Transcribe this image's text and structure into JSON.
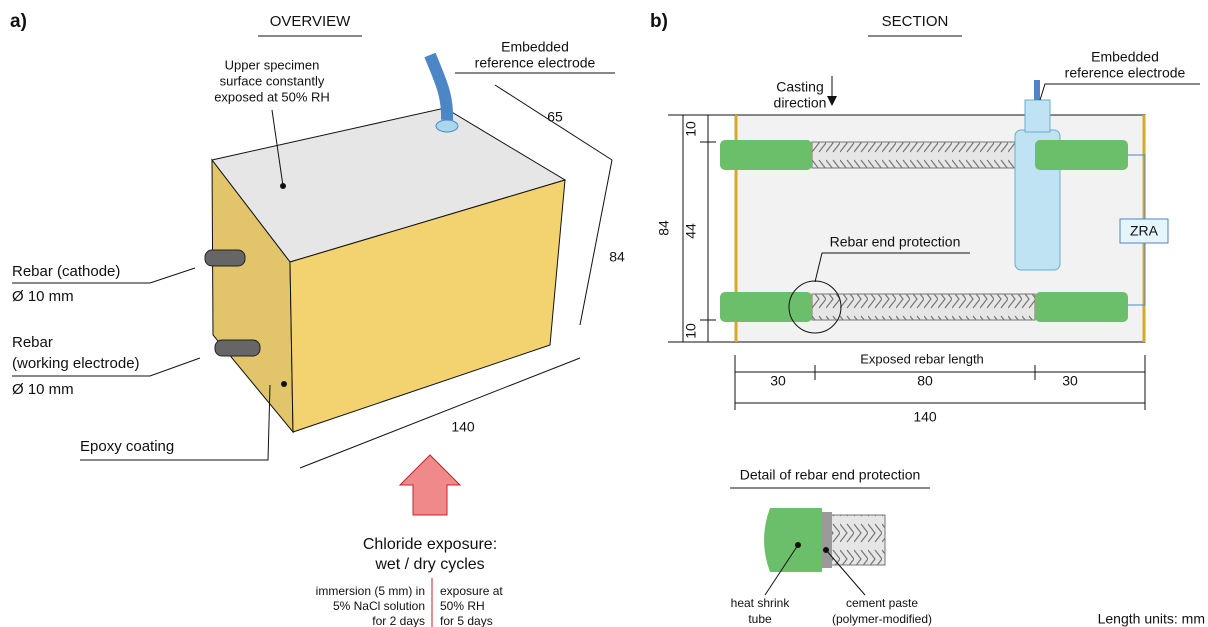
{
  "panel_a": {
    "label": "a)",
    "title": "OVERVIEW",
    "top_surface_note": [
      "Upper specimen",
      "surface constantly",
      "exposed at 50% RH"
    ],
    "electrode_label": [
      "Embedded",
      "reference electrode"
    ],
    "dimensions": {
      "depth": 65,
      "height": 84,
      "length": 140
    },
    "rebar_cathode": [
      "Rebar (cathode)",
      "Ø 10 mm"
    ],
    "rebar_working": [
      "Rebar",
      "(working electrode)",
      "Ø 10 mm"
    ],
    "coating": "Epoxy coating",
    "exposure_title": [
      "Chloride exposure:",
      "wet / dry cycles"
    ],
    "wet_phase": [
      "immersion (5 mm) in",
      "5% NaCl solution",
      "for 2 days"
    ],
    "dry_phase": [
      "exposure at",
      "50% RH",
      "for 5 days"
    ]
  },
  "panel_b": {
    "label": "b)",
    "title": "SECTION",
    "casting": [
      "Casting",
      "direction"
    ],
    "electrode_label": [
      "Embedded",
      "reference electrode"
    ],
    "zra": "ZRA",
    "end_protection": "Rebar end protection",
    "height_total": 84,
    "height_parts": [
      10,
      44,
      10
    ],
    "exposed_label": "Exposed rebar length",
    "length_parts": [
      30,
      80,
      30
    ],
    "length_total": 140
  },
  "detail": {
    "title": "Detail of rebar end protection",
    "heat_shrink": [
      "heat shrink",
      "tube"
    ],
    "cement_paste": [
      "cement paste",
      "(polymer-modified)"
    ]
  },
  "units": "Length units: mm"
}
